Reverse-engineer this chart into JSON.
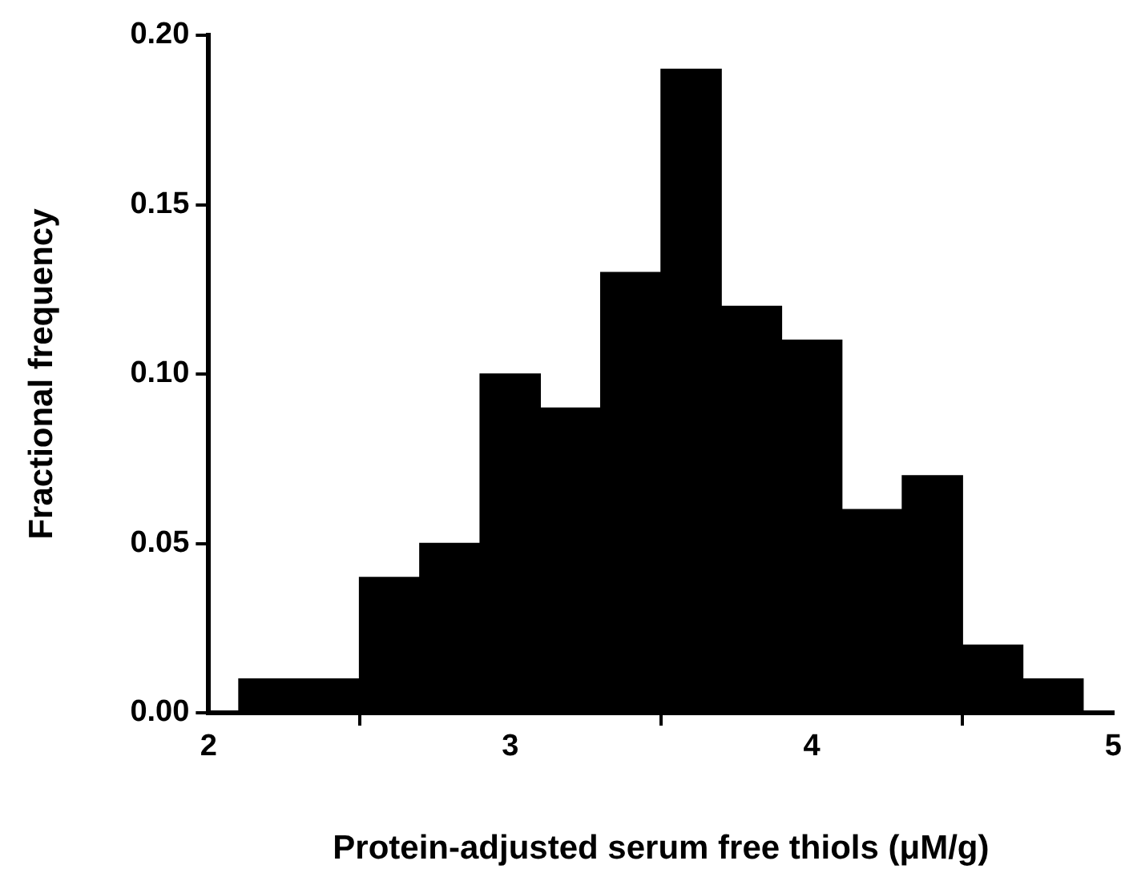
{
  "chart_data": {
    "type": "histogram",
    "xlabel": "Protein-adjusted serum free thiols (μM/g)",
    "ylabel": "Fractional frequency",
    "bins": [
      2.1,
      2.3,
      2.5,
      2.7,
      2.9,
      3.1,
      3.3,
      3.5,
      3.7,
      3.9,
      4.1,
      4.3,
      4.5,
      4.7,
      4.9
    ],
    "values": [
      0.01,
      0.01,
      0.04,
      0.05,
      0.1,
      0.09,
      0.13,
      0.19,
      0.12,
      0.11,
      0.06,
      0.07,
      0.02,
      0.01
    ],
    "color": "#000000",
    "xlim": [
      2,
      5
    ],
    "xticks": [
      2,
      3,
      4,
      5
    ],
    "ylim": [
      0,
      0.2
    ],
    "yticks": [
      {
        "value": 0,
        "label": "0.00"
      },
      {
        "value": 0.05,
        "label": "0.05"
      },
      {
        "value": 0.1,
        "label": "0.10"
      },
      {
        "value": 0.15,
        "label": "0.15"
      },
      {
        "value": 0.2,
        "label": "0.20"
      }
    ],
    "grid": false,
    "legend": false
  }
}
